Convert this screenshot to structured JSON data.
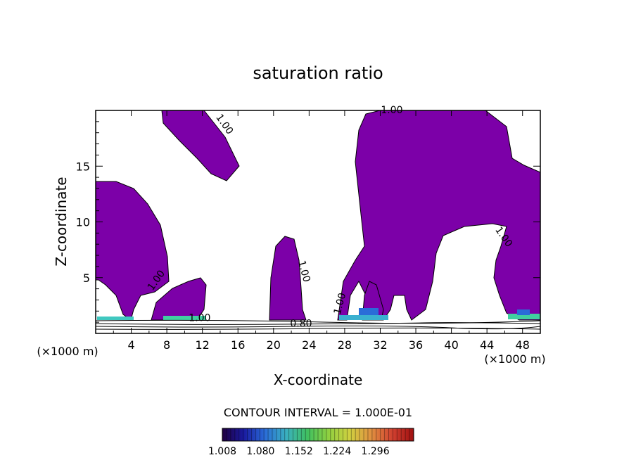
{
  "chart_data": {
    "type": "contour",
    "title": "saturation ratio",
    "xlabel": "X-coordinate",
    "ylabel": "Z-coordinate",
    "x_units": "(×1000 m)",
    "xlim": [
      0,
      50
    ],
    "ylim": [
      0,
      20
    ],
    "xticks": [
      4,
      8,
      12,
      16,
      20,
      24,
      28,
      32,
      36,
      40,
      44,
      48
    ],
    "yticks": [
      5,
      10,
      15
    ],
    "fill_color": "#7c00a8",
    "contour_labels": [
      {
        "text": "1.00",
        "x": 14.2,
        "z": 18.6,
        "rot": 55
      },
      {
        "text": "1.00",
        "x": 33.3,
        "z": 19.75,
        "rot": 0
      },
      {
        "text": "1.00",
        "x": 45.6,
        "z": 8.5,
        "rot": 55
      },
      {
        "text": "1.00",
        "x": 7.1,
        "z": 4.6,
        "rot": -55
      },
      {
        "text": "1.00",
        "x": 23.1,
        "z": 5.5,
        "rot": 75
      },
      {
        "text": "1.00",
        "x": 27.8,
        "z": 2.6,
        "rot": -75
      },
      {
        "text": "1.00",
        "x": 11.7,
        "z": 1.1,
        "rot": 0
      },
      {
        "text": "0.80",
        "x": 23.1,
        "z": 0.6,
        "rot": 0
      }
    ],
    "contour_interval_text": "CONTOUR INTERVAL = 1.000E-01",
    "colorbar": {
      "ticks": [
        "1.008",
        "1.080",
        "1.152",
        "1.224",
        "1.296"
      ],
      "range": [
        1.008,
        1.368
      ],
      "colors": [
        "#200040",
        "#1a1aa0",
        "#2a6cd8",
        "#3ab0c0",
        "#40c060",
        "#90d040",
        "#d0d040",
        "#e09040",
        "#d04030",
        "#a01010"
      ]
    }
  }
}
